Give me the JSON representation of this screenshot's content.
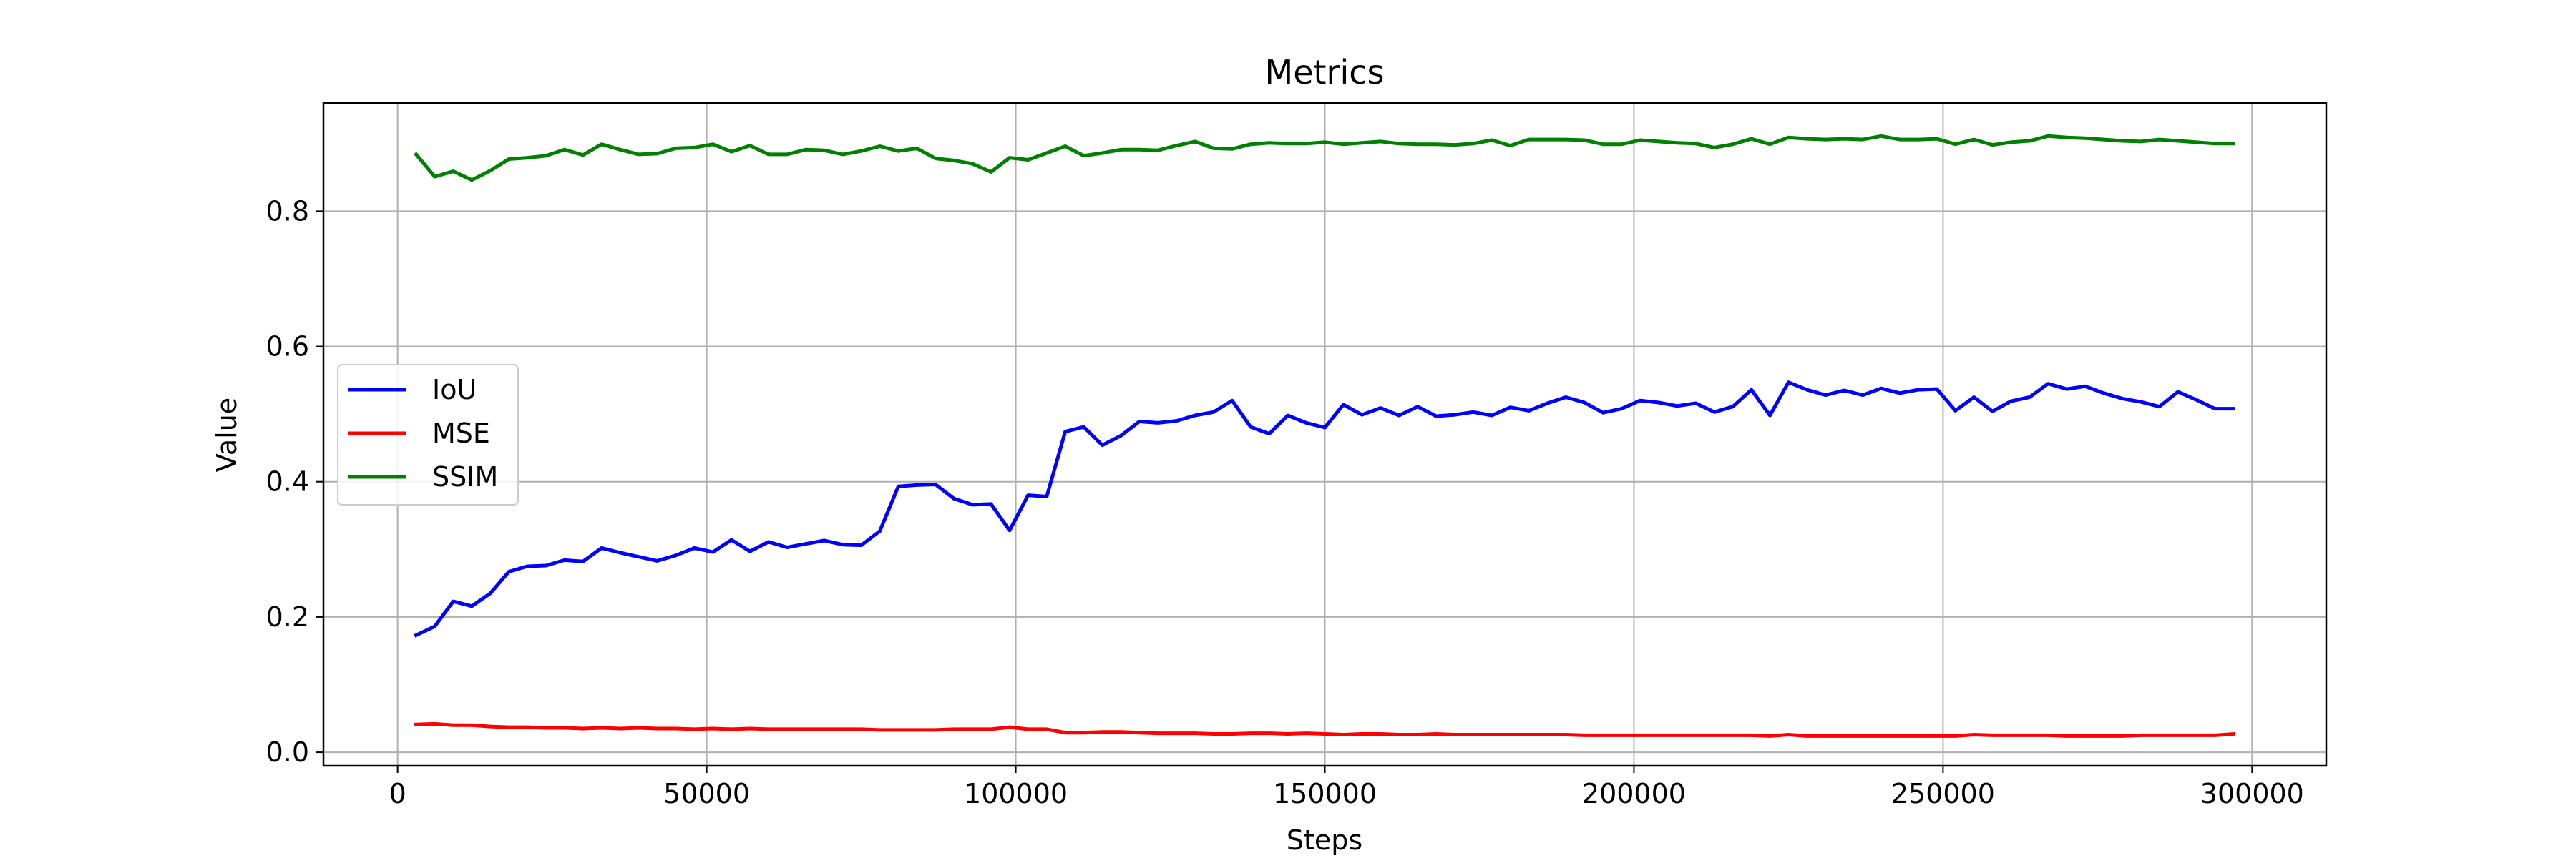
{
  "chart_data": {
    "type": "line",
    "title": "Metrics",
    "xlabel": "Steps",
    "ylabel": "Value",
    "xlim": [
      -12000,
      312000
    ],
    "ylim": [
      -0.02,
      0.96
    ],
    "xticks": [
      0,
      50000,
      100000,
      150000,
      200000,
      250000,
      300000
    ],
    "xtick_labels": [
      "0",
      "50000",
      "100000",
      "150000",
      "200000",
      "250000",
      "300000"
    ],
    "yticks": [
      0.0,
      0.2,
      0.4,
      0.6,
      0.8
    ],
    "ytick_labels": [
      "0.0",
      "0.2",
      "0.4",
      "0.6",
      "0.8"
    ],
    "grid": true,
    "legend_position": "center-left",
    "x": [
      3000,
      6000,
      9000,
      12000,
      15000,
      18000,
      21000,
      24000,
      27000,
      30000,
      33000,
      36000,
      39000,
      42000,
      45000,
      48000,
      51000,
      54000,
      57000,
      60000,
      63000,
      66000,
      69000,
      72000,
      75000,
      78000,
      81000,
      84000,
      87000,
      90000,
      93000,
      96000,
      99000,
      102000,
      105000,
      108000,
      111000,
      114000,
      117000,
      120000,
      123000,
      126000,
      129000,
      132000,
      135000,
      138000,
      141000,
      144000,
      147000,
      150000,
      153000,
      156000,
      159000,
      162000,
      165000,
      168000,
      171000,
      174000,
      177000,
      180000,
      183000,
      186000,
      189000,
      192000,
      195000,
      198000,
      201000,
      204000,
      207000,
      210000,
      213000,
      216000,
      219000,
      222000,
      225000,
      228000,
      231000,
      234000,
      237000,
      240000,
      243000,
      246000,
      249000,
      252000,
      255000,
      258000,
      261000,
      264000,
      267000,
      270000,
      273000,
      276000,
      279000,
      282000,
      285000,
      288000,
      291000,
      294000,
      297000
    ],
    "series": [
      {
        "name": "IoU",
        "color": "#0000ff",
        "values": [
          0.173,
          0.186,
          0.223,
          0.216,
          0.235,
          0.267,
          0.275,
          0.276,
          0.284,
          0.282,
          0.302,
          0.295,
          0.289,
          0.283,
          0.291,
          0.302,
          0.296,
          0.314,
          0.297,
          0.311,
          0.303,
          0.308,
          0.313,
          0.307,
          0.306,
          0.327,
          0.393,
          0.395,
          0.396,
          0.375,
          0.366,
          0.367,
          0.328,
          0.38,
          0.378,
          0.474,
          0.481,
          0.454,
          0.468,
          0.489,
          0.487,
          0.49,
          0.498,
          0.503,
          0.52,
          0.481,
          0.471,
          0.498,
          0.487,
          0.48,
          0.514,
          0.499,
          0.509,
          0.498,
          0.511,
          0.497,
          0.499,
          0.503,
          0.498,
          0.51,
          0.505,
          0.516,
          0.525,
          0.517,
          0.502,
          0.508,
          0.52,
          0.517,
          0.512,
          0.516,
          0.503,
          0.511,
          0.536,
          0.498,
          0.547,
          0.536,
          0.528,
          0.535,
          0.528,
          0.538,
          0.531,
          0.536,
          0.537,
          0.505,
          0.525,
          0.504,
          0.519,
          0.525,
          0.545,
          0.537,
          0.541,
          0.531,
          0.523,
          0.518,
          0.511,
          0.533,
          0.521,
          0.508,
          0.508
        ]
      },
      {
        "name": "MSE",
        "color": "#ff0000",
        "values": [
          0.041,
          0.042,
          0.04,
          0.04,
          0.038,
          0.037,
          0.037,
          0.036,
          0.036,
          0.035,
          0.036,
          0.035,
          0.036,
          0.035,
          0.035,
          0.034,
          0.035,
          0.034,
          0.035,
          0.034,
          0.034,
          0.034,
          0.034,
          0.034,
          0.034,
          0.033,
          0.033,
          0.033,
          0.033,
          0.034,
          0.034,
          0.034,
          0.037,
          0.034,
          0.034,
          0.029,
          0.029,
          0.03,
          0.03,
          0.029,
          0.028,
          0.028,
          0.028,
          0.027,
          0.027,
          0.028,
          0.028,
          0.027,
          0.028,
          0.027,
          0.026,
          0.027,
          0.027,
          0.026,
          0.026,
          0.027,
          0.026,
          0.026,
          0.026,
          0.026,
          0.026,
          0.026,
          0.026,
          0.025,
          0.025,
          0.025,
          0.025,
          0.025,
          0.025,
          0.025,
          0.025,
          0.025,
          0.025,
          0.024,
          0.026,
          0.024,
          0.024,
          0.024,
          0.024,
          0.024,
          0.024,
          0.024,
          0.024,
          0.024,
          0.026,
          0.025,
          0.025,
          0.025,
          0.025,
          0.024,
          0.024,
          0.024,
          0.024,
          0.025,
          0.025,
          0.025,
          0.025,
          0.025,
          0.027
        ]
      },
      {
        "name": "SSIM",
        "color": "#008000",
        "values": [
          0.884,
          0.851,
          0.859,
          0.846,
          0.86,
          0.877,
          0.879,
          0.882,
          0.891,
          0.883,
          0.899,
          0.891,
          0.884,
          0.885,
          0.893,
          0.894,
          0.899,
          0.888,
          0.897,
          0.884,
          0.884,
          0.891,
          0.89,
          0.884,
          0.889,
          0.896,
          0.889,
          0.893,
          0.878,
          0.875,
          0.87,
          0.858,
          0.879,
          0.876,
          0.886,
          0.896,
          0.882,
          0.886,
          0.891,
          0.891,
          0.89,
          0.897,
          0.903,
          0.893,
          0.892,
          0.899,
          0.901,
          0.9,
          0.9,
          0.902,
          0.899,
          0.901,
          0.903,
          0.9,
          0.899,
          0.899,
          0.898,
          0.9,
          0.905,
          0.897,
          0.906,
          0.906,
          0.906,
          0.905,
          0.899,
          0.899,
          0.905,
          0.903,
          0.901,
          0.9,
          0.894,
          0.899,
          0.907,
          0.899,
          0.909,
          0.907,
          0.906,
          0.907,
          0.906,
          0.911,
          0.906,
          0.906,
          0.907,
          0.899,
          0.906,
          0.898,
          0.902,
          0.904,
          0.911,
          0.909,
          0.908,
          0.906,
          0.904,
          0.903,
          0.906,
          0.904,
          0.902,
          0.9,
          0.9
        ]
      }
    ]
  }
}
